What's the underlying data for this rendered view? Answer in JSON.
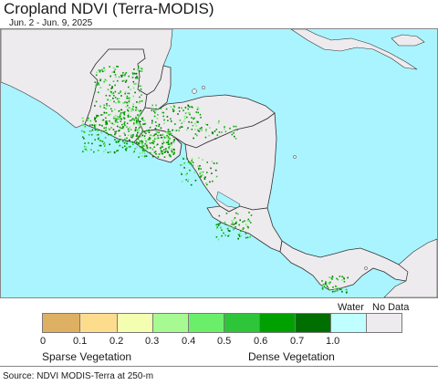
{
  "header": {
    "title": "Cropland NDVI (Terra-MODIS)",
    "date_range": "Jun. 2 - Jun. 9, 2025"
  },
  "map": {
    "ocean_color": "#aaf4ff",
    "land_color": "#eeebee",
    "border_color": "#333333"
  },
  "legend": {
    "ticks": [
      "0",
      "0.1",
      "0.2",
      "0.3",
      "0.4",
      "0.5",
      "0.6",
      "0.7",
      "1.0"
    ],
    "classes": [
      {
        "color": "#deb064"
      },
      {
        "color": "#fddc8e"
      },
      {
        "color": "#f4feb0"
      },
      {
        "color": "#a6fa91"
      },
      {
        "color": "#6bef6b"
      },
      {
        "color": "#2fc53a"
      },
      {
        "color": "#00a000"
      },
      {
        "color": "#006e00"
      }
    ],
    "water": {
      "label": "Water",
      "color": "#c0ffff"
    },
    "nodata": {
      "label": "No Data",
      "color": "#eeebee"
    },
    "sparse_label": "Sparse Vegetation",
    "dense_label": "Dense Vegetation"
  },
  "footer": {
    "source": "Source: NDVI MODIS-Terra at 250-m"
  }
}
